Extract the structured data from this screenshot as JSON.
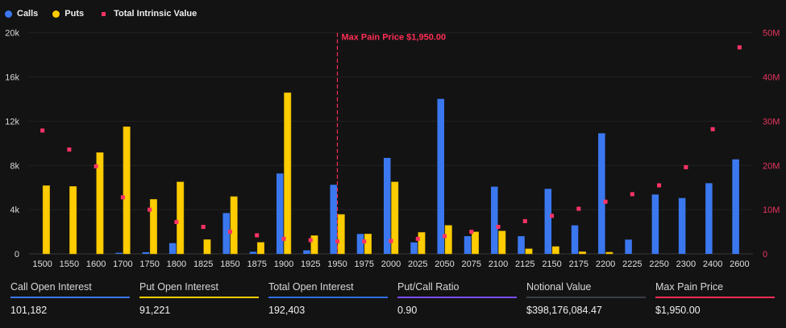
{
  "chart_data": {
    "type": "bar",
    "legend": [
      {
        "name": "Calls",
        "color": "#3b78f0",
        "marker": "circle"
      },
      {
        "name": "Puts",
        "color": "#ffcc00",
        "marker": "circle"
      },
      {
        "name": "Total Intrinsic Value",
        "color": "#ff3366",
        "marker": "square"
      }
    ],
    "legend_position": "top-left",
    "categories": [
      "1500",
      "1550",
      "1600",
      "1700",
      "1750",
      "1800",
      "1825",
      "1850",
      "1875",
      "1900",
      "1925",
      "1950",
      "1975",
      "2000",
      "2025",
      "2050",
      "2075",
      "2100",
      "2125",
      "2150",
      "2175",
      "2200",
      "2225",
      "2250",
      "2300",
      "2400",
      "2600"
    ],
    "series": [
      {
        "name": "Calls",
        "axis": "left",
        "type": "bar",
        "color": "#3b78f0",
        "values": [
          0,
          0,
          0,
          100,
          150,
          970,
          0,
          3690,
          190,
          7270,
          320,
          6250,
          1800,
          8680,
          1040,
          14020,
          1600,
          6080,
          1600,
          5880,
          2580,
          10910,
          1290,
          5370,
          5050,
          6390,
          8550
        ]
      },
      {
        "name": "Puts",
        "axis": "left",
        "type": "bar",
        "color": "#ffcc00",
        "values": [
          6170,
          6100,
          9160,
          11500,
          4930,
          6510,
          1290,
          5180,
          1040,
          14580,
          1650,
          3570,
          1800,
          6510,
          1940,
          2580,
          1990,
          2070,
          460,
          660,
          190,
          150,
          0,
          0,
          0,
          0,
          0
        ]
      },
      {
        "name": "Total Intrinsic Value",
        "axis": "right",
        "type": "scatter",
        "color": "#ff3366",
        "values": [
          27.9,
          23.6,
          19.8,
          12.8,
          10.0,
          7.2,
          6.1,
          5.0,
          4.2,
          3.4,
          3.1,
          2.8,
          2.8,
          2.9,
          3.4,
          4.0,
          5.0,
          6.1,
          7.4,
          8.6,
          10.2,
          11.8,
          13.5,
          15.5,
          19.6,
          28.2,
          46.7
        ]
      }
    ],
    "y_left": {
      "min": 0,
      "max": 20000,
      "ticks": [
        "0",
        "4k",
        "8k",
        "12k",
        "16k",
        "20k"
      ]
    },
    "y_right": {
      "min": 0,
      "max": 50,
      "unit": "M",
      "ticks": [
        "0",
        "10M",
        "20M",
        "30M",
        "40M",
        "50M"
      ],
      "color": "#e8345f"
    },
    "grid": true,
    "annotation": {
      "label": "Max Pain Price $1,950.00",
      "category": "1950",
      "color": "#ff2d55"
    }
  },
  "stats": [
    {
      "label": "Call Open Interest",
      "value": "101,182",
      "color": "#3b78f0"
    },
    {
      "label": "Put Open Interest",
      "value": "91,221",
      "color": "#ffcc00"
    },
    {
      "label": "Total Open Interest",
      "value": "192,403",
      "color": "#2f6fe0"
    },
    {
      "label": "Put/Call Ratio",
      "value": "0.90",
      "color": "#7c4dff"
    },
    {
      "label": "Notional Value",
      "value": "$398,176,084.47",
      "color": "#3a3d44"
    },
    {
      "label": "Max Pain Price",
      "value": "$1,950.00",
      "color": "#ff2d55"
    }
  ]
}
